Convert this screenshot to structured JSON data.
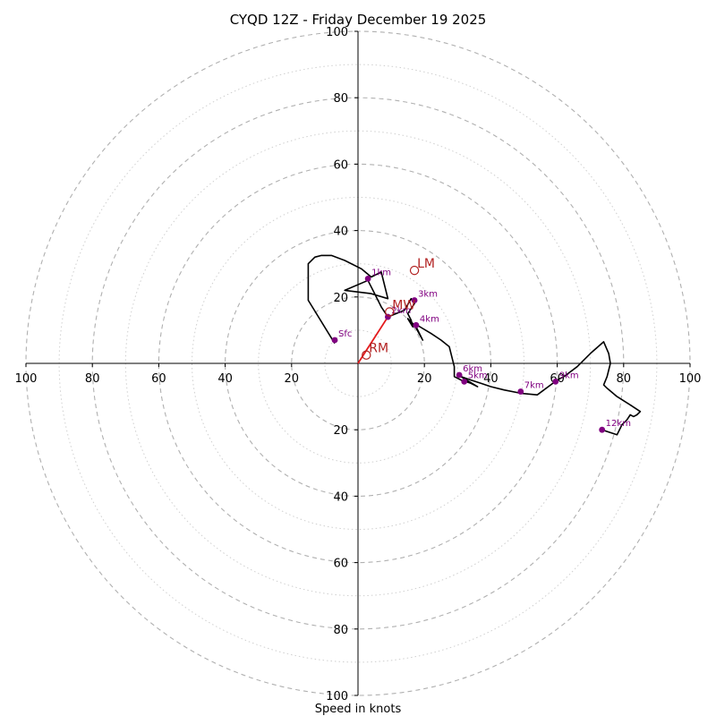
{
  "chart_data": {
    "type": "hodograph",
    "title": "CYQD 12Z - Friday December 19 2025",
    "xlabel": "Speed in knots",
    "range": 100,
    "rings": [
      10,
      20,
      30,
      40,
      50,
      60,
      70,
      80,
      90,
      100
    ],
    "x_ticks": [
      {
        "value": -100,
        "label": "100"
      },
      {
        "value": -80,
        "label": "80"
      },
      {
        "value": -60,
        "label": "60"
      },
      {
        "value": -40,
        "label": "40"
      },
      {
        "value": -20,
        "label": "20"
      },
      {
        "value": 20,
        "label": "20"
      },
      {
        "value": 40,
        "label": "40"
      },
      {
        "value": 60,
        "label": "60"
      },
      {
        "value": 80,
        "label": "80"
      },
      {
        "value": 100,
        "label": "100"
      }
    ],
    "y_ticks": [
      {
        "value": 100,
        "label": "100"
      },
      {
        "value": 80,
        "label": "80"
      },
      {
        "value": 60,
        "label": "60"
      },
      {
        "value": 40,
        "label": "40"
      },
      {
        "value": 20,
        "label": "20"
      },
      {
        "value": -20,
        "label": "20"
      },
      {
        "value": -40,
        "label": "40"
      },
      {
        "value": -60,
        "label": "60"
      },
      {
        "value": -80,
        "label": "80"
      },
      {
        "value": -100,
        "label": "100"
      }
    ],
    "hodograph_line": {
      "color": "#000000",
      "points": [
        [
          -7,
          6
        ],
        [
          -15,
          19
        ],
        [
          -15,
          30
        ],
        [
          -13,
          32
        ],
        [
          -11,
          32.5
        ],
        [
          -8,
          32.5
        ],
        [
          -4,
          31
        ],
        [
          1,
          28.5
        ],
        [
          4,
          26
        ],
        [
          7,
          27.5
        ],
        [
          9,
          19.5
        ],
        [
          4,
          21
        ],
        [
          -4,
          22
        ],
        [
          3,
          25
        ],
        [
          5,
          21
        ],
        [
          7,
          17
        ],
        [
          9,
          14
        ],
        [
          14,
          16
        ],
        [
          16,
          19.5
        ],
        [
          17,
          18
        ],
        [
          15,
          15
        ],
        [
          16,
          13
        ],
        [
          16.5,
          11
        ],
        [
          15,
          13.5
        ],
        [
          17,
          11.5
        ],
        [
          19.5,
          7
        ],
        [
          17,
          12
        ],
        [
          22,
          9
        ],
        [
          25,
          7
        ],
        [
          27.5,
          5
        ],
        [
          29,
          -1
        ],
        [
          29,
          -4
        ],
        [
          31,
          -5
        ],
        [
          34,
          -6
        ],
        [
          36,
          -7
        ],
        [
          31,
          -4
        ],
        [
          34,
          -5
        ],
        [
          37,
          -6
        ],
        [
          40,
          -7
        ],
        [
          44,
          -8
        ],
        [
          49,
          -9
        ],
        [
          54,
          -9.5
        ],
        [
          60,
          -5
        ],
        [
          62,
          -4
        ],
        [
          66,
          -1
        ],
        [
          70,
          3
        ],
        [
          74,
          6.5
        ],
        [
          75.5,
          3
        ],
        [
          76,
          0
        ],
        [
          75,
          -4
        ],
        [
          74,
          -6.5
        ],
        [
          75,
          -7.5
        ],
        [
          78,
          -10
        ],
        [
          82,
          -12.5
        ],
        [
          85,
          -14.5
        ],
        [
          84,
          -15.5
        ],
        [
          83,
          -16
        ],
        [
          82,
          -15.5
        ],
        [
          81,
          -17
        ],
        [
          79.5,
          -18.5
        ],
        [
          78,
          -21.5
        ],
        [
          75,
          -20.5
        ],
        [
          73.5,
          -20
        ]
      ]
    },
    "shear_vector": {
      "color": "#e41a1c",
      "from": [
        0,
        0
      ],
      "to": [
        9,
        14
      ]
    },
    "height_markers": [
      {
        "label": "Sfc",
        "u": -7,
        "v": 7
      },
      {
        "label": "1km",
        "u": 3,
        "v": 25.5
      },
      {
        "label": "2km",
        "u": 9,
        "v": 14
      },
      {
        "label": "3km",
        "u": 17,
        "v": 19
      },
      {
        "label": "4km",
        "u": 17.5,
        "v": 11.5
      },
      {
        "label": "5km",
        "u": 32,
        "v": -5.5
      },
      {
        "label": "6km",
        "u": 30.5,
        "v": -3.5
      },
      {
        "label": "7km",
        "u": 49,
        "v": -8.5
      },
      {
        "label": "9km",
        "u": 59.5,
        "v": -5.5
      },
      {
        "label": "12km",
        "u": 73.5,
        "v": -20
      }
    ],
    "storm_motion_markers": [
      {
        "label": "LM",
        "u": 17,
        "v": 28
      },
      {
        "label": "MW",
        "u": 9.5,
        "v": 15.5
      },
      {
        "label": "RM",
        "u": 2.5,
        "v": 2.5
      }
    ]
  }
}
